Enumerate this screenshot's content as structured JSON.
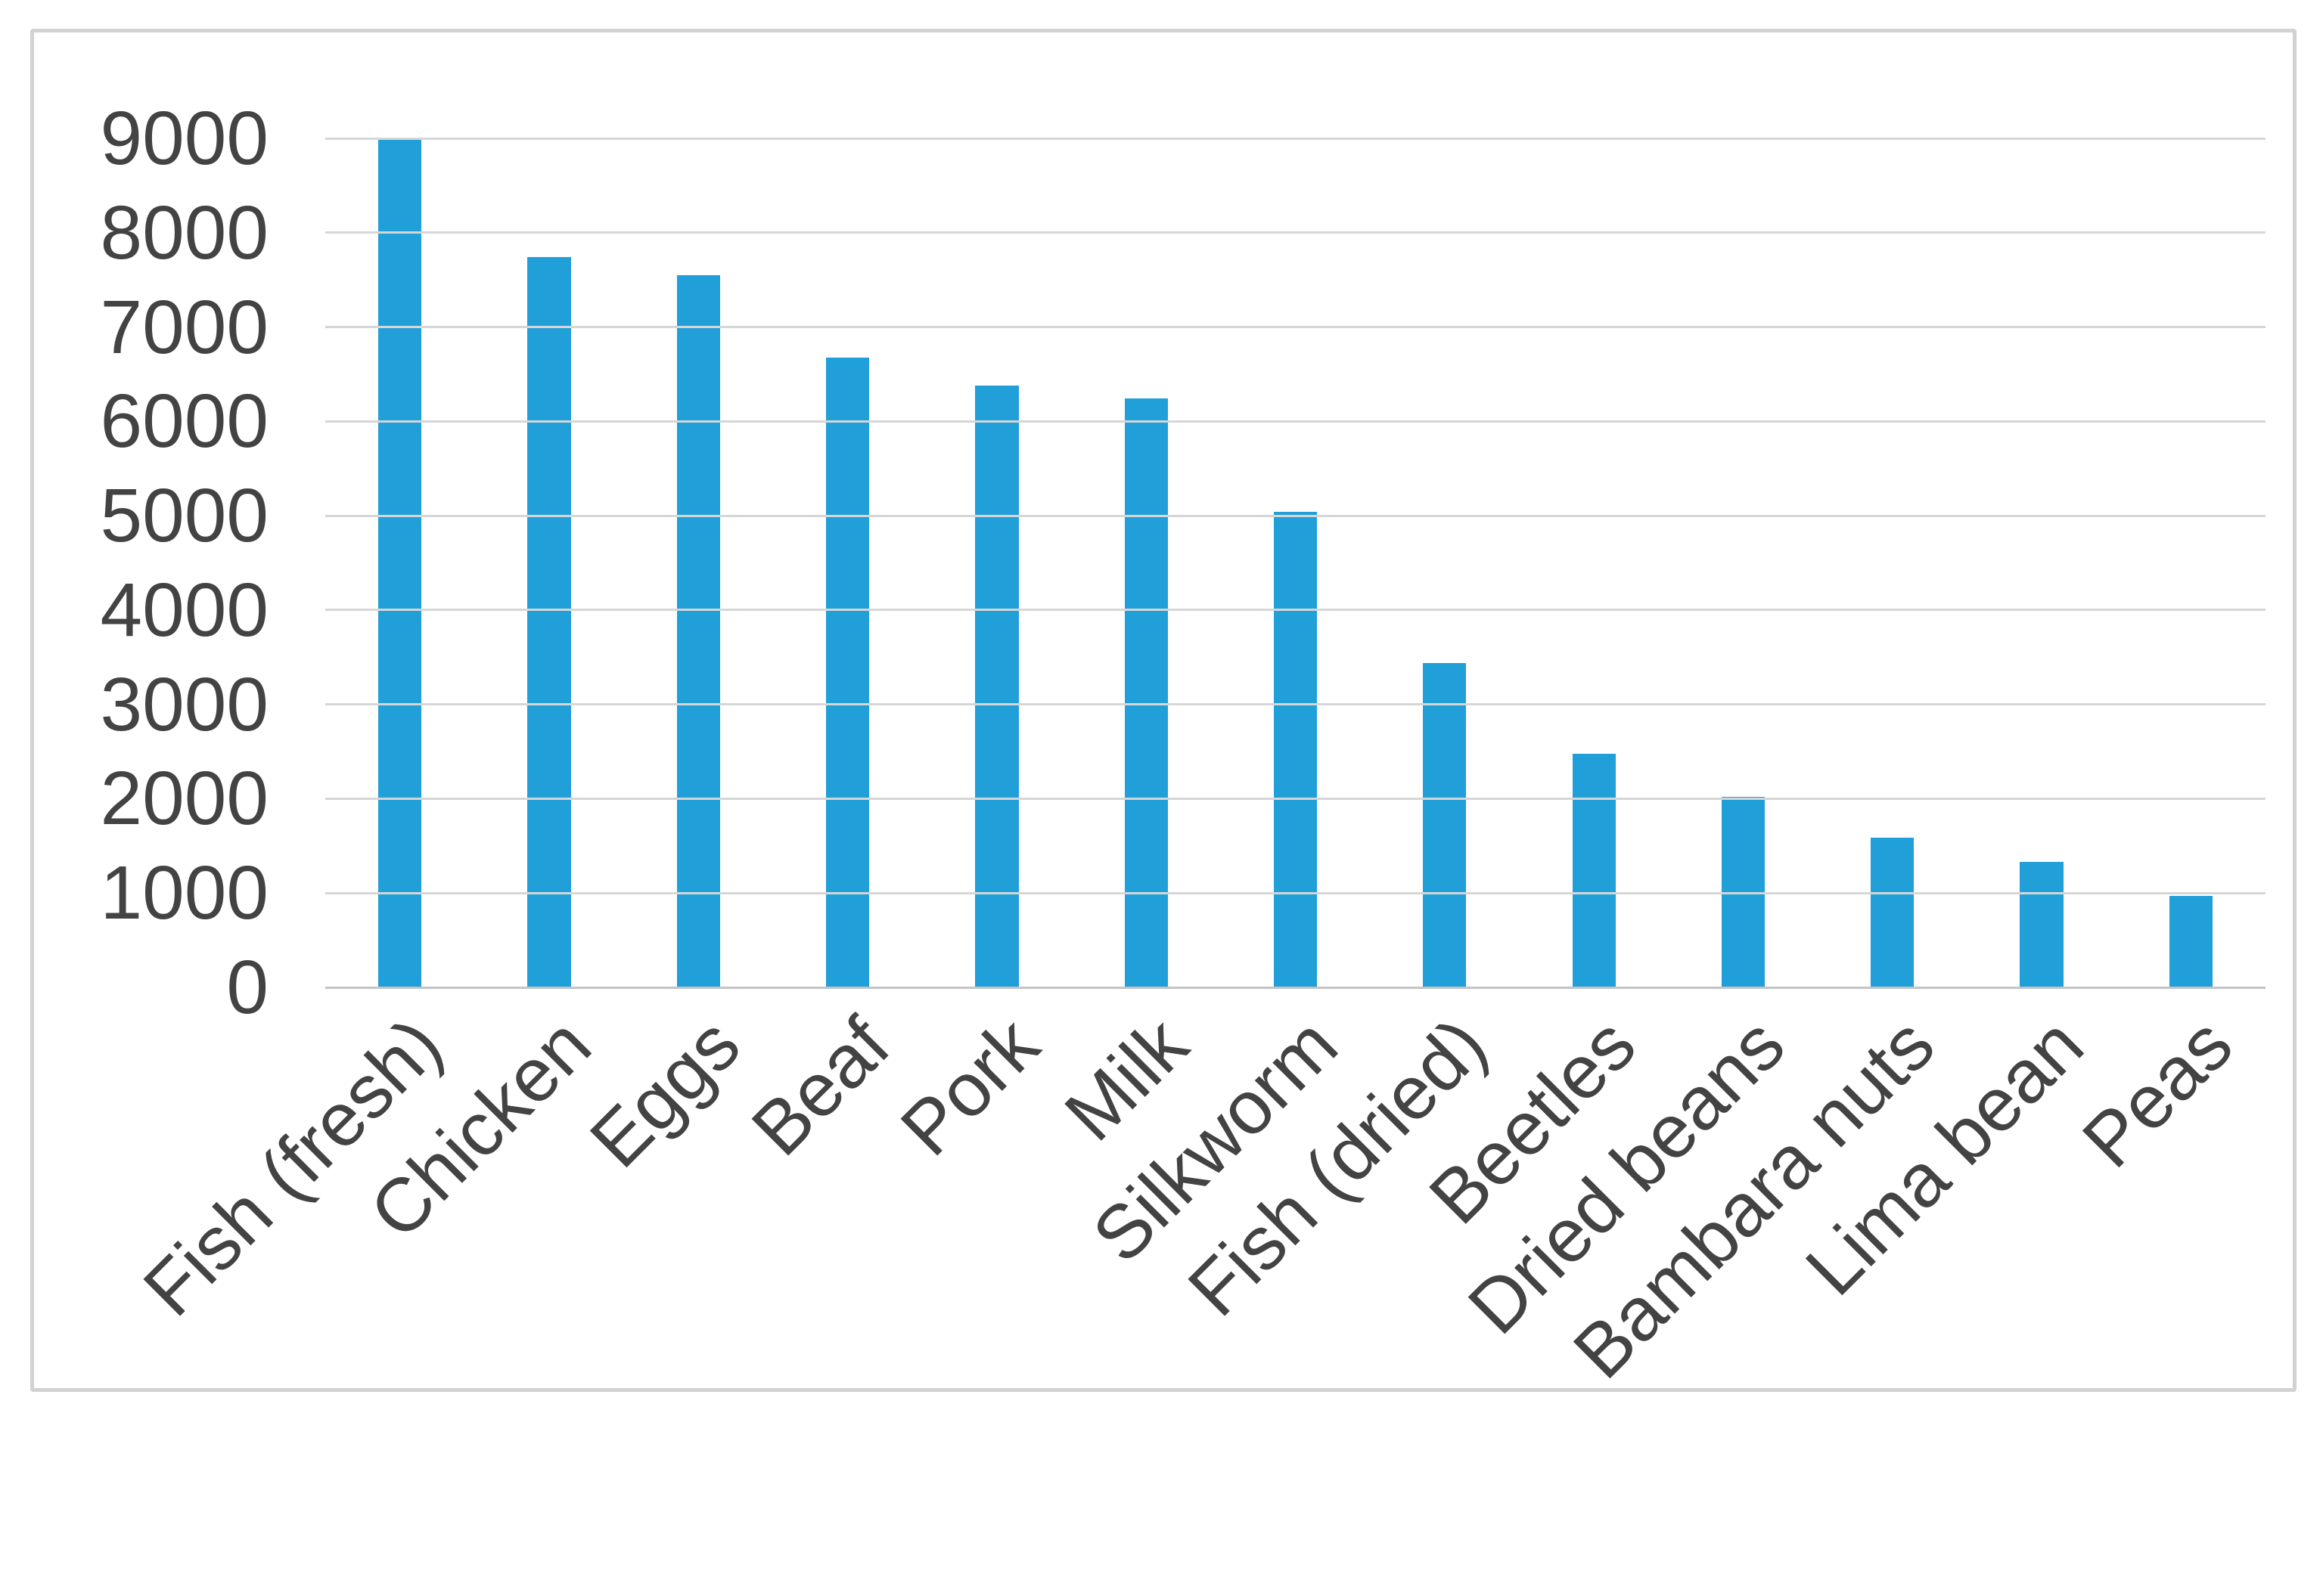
{
  "figure": {
    "background_color": "#ffffff",
    "frame_border_color": "#d2d2d2"
  },
  "chart_data": {
    "type": "bar",
    "title": "",
    "xlabel": "",
    "ylabel": "",
    "categories": [
      "Fish (fresh)",
      "Chicken",
      "Eggs",
      "Beaf",
      "Pork",
      "Milk",
      "Silkworm",
      "Fish (dried)",
      "Beetles",
      "Dried beans",
      "Bambara nuts",
      "Lima bean",
      "Peas"
    ],
    "values": [
      9000,
      7740,
      7550,
      6680,
      6380,
      6240,
      5040,
      3440,
      2480,
      2020,
      1590,
      1330,
      970
    ],
    "ylim": [
      0,
      9000
    ],
    "yticks": [
      0,
      1000,
      2000,
      3000,
      4000,
      5000,
      6000,
      7000,
      8000,
      9000
    ],
    "grid": true,
    "legend": false,
    "category_label_rotation_deg": 45,
    "bar_color": "#219fd9",
    "gridline_color": "#d6d6d6",
    "axis_line_color": "#c4c4c4",
    "tick_label_color": "#434343"
  }
}
